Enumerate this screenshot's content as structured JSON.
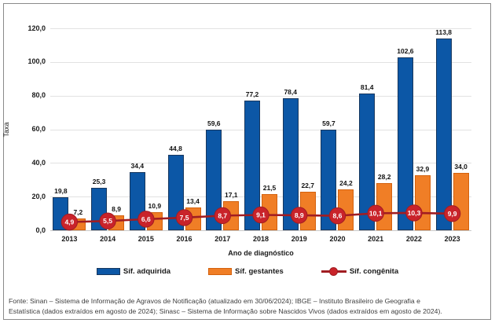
{
  "chart_data": {
    "type": "bar+line",
    "title": "",
    "xlabel": "Ano de diagnóstico",
    "ylabel": "Taxa",
    "ylim": [
      0,
      120
    ],
    "yticks": [
      0,
      20,
      40,
      60,
      80,
      100,
      120
    ],
    "grid": true,
    "legend_position": "bottom",
    "decimal_separator": ",",
    "categories": [
      "2013",
      "2014",
      "2015",
      "2016",
      "2017",
      "2018",
      "2019",
      "2020",
      "2021",
      "2022",
      "2023"
    ],
    "series": [
      {
        "name": "Síf. adquirida",
        "type": "bar",
        "color": "#0c57a6",
        "border_color": "#17375e",
        "values": [
          19.8,
          25.3,
          34.4,
          44.8,
          59.6,
          77.2,
          78.4,
          59.7,
          81.4,
          102.6,
          113.8
        ]
      },
      {
        "name": "Síf. gestantes",
        "type": "bar",
        "color": "#f07e26",
        "border_color": "#d4610d",
        "values": [
          7.2,
          8.9,
          10.9,
          13.4,
          17.1,
          21.5,
          22.7,
          24.2,
          28.2,
          32.9,
          34.0
        ]
      },
      {
        "name": "Síf. congênita",
        "type": "line",
        "color": "#c9232a",
        "line_color": "#a11d22",
        "label_color": "#ffffff",
        "values": [
          4.9,
          5.5,
          6.6,
          7.5,
          8.7,
          9.1,
          8.9,
          8.6,
          10.1,
          10.3,
          9.9
        ]
      }
    ]
  },
  "footer": {
    "line1": "Fonte: Sinan – Sistema de Informação de Agravos de Notificação (atualizado em 30/06/2024); IBGE – Instituto Brasileiro de Geografia e",
    "line2": "Estatística (dados extraídos em agosto de 2024); Sinasc – Sistema de Informação sobre Nascidos Vivos (dados extraídos em agosto de 2024)."
  },
  "colors": {
    "gridline": "#e2e2e2",
    "baseline": "#c9c9c9",
    "frame_border": "#8a8a8a",
    "text": "#1a1a1a"
  }
}
